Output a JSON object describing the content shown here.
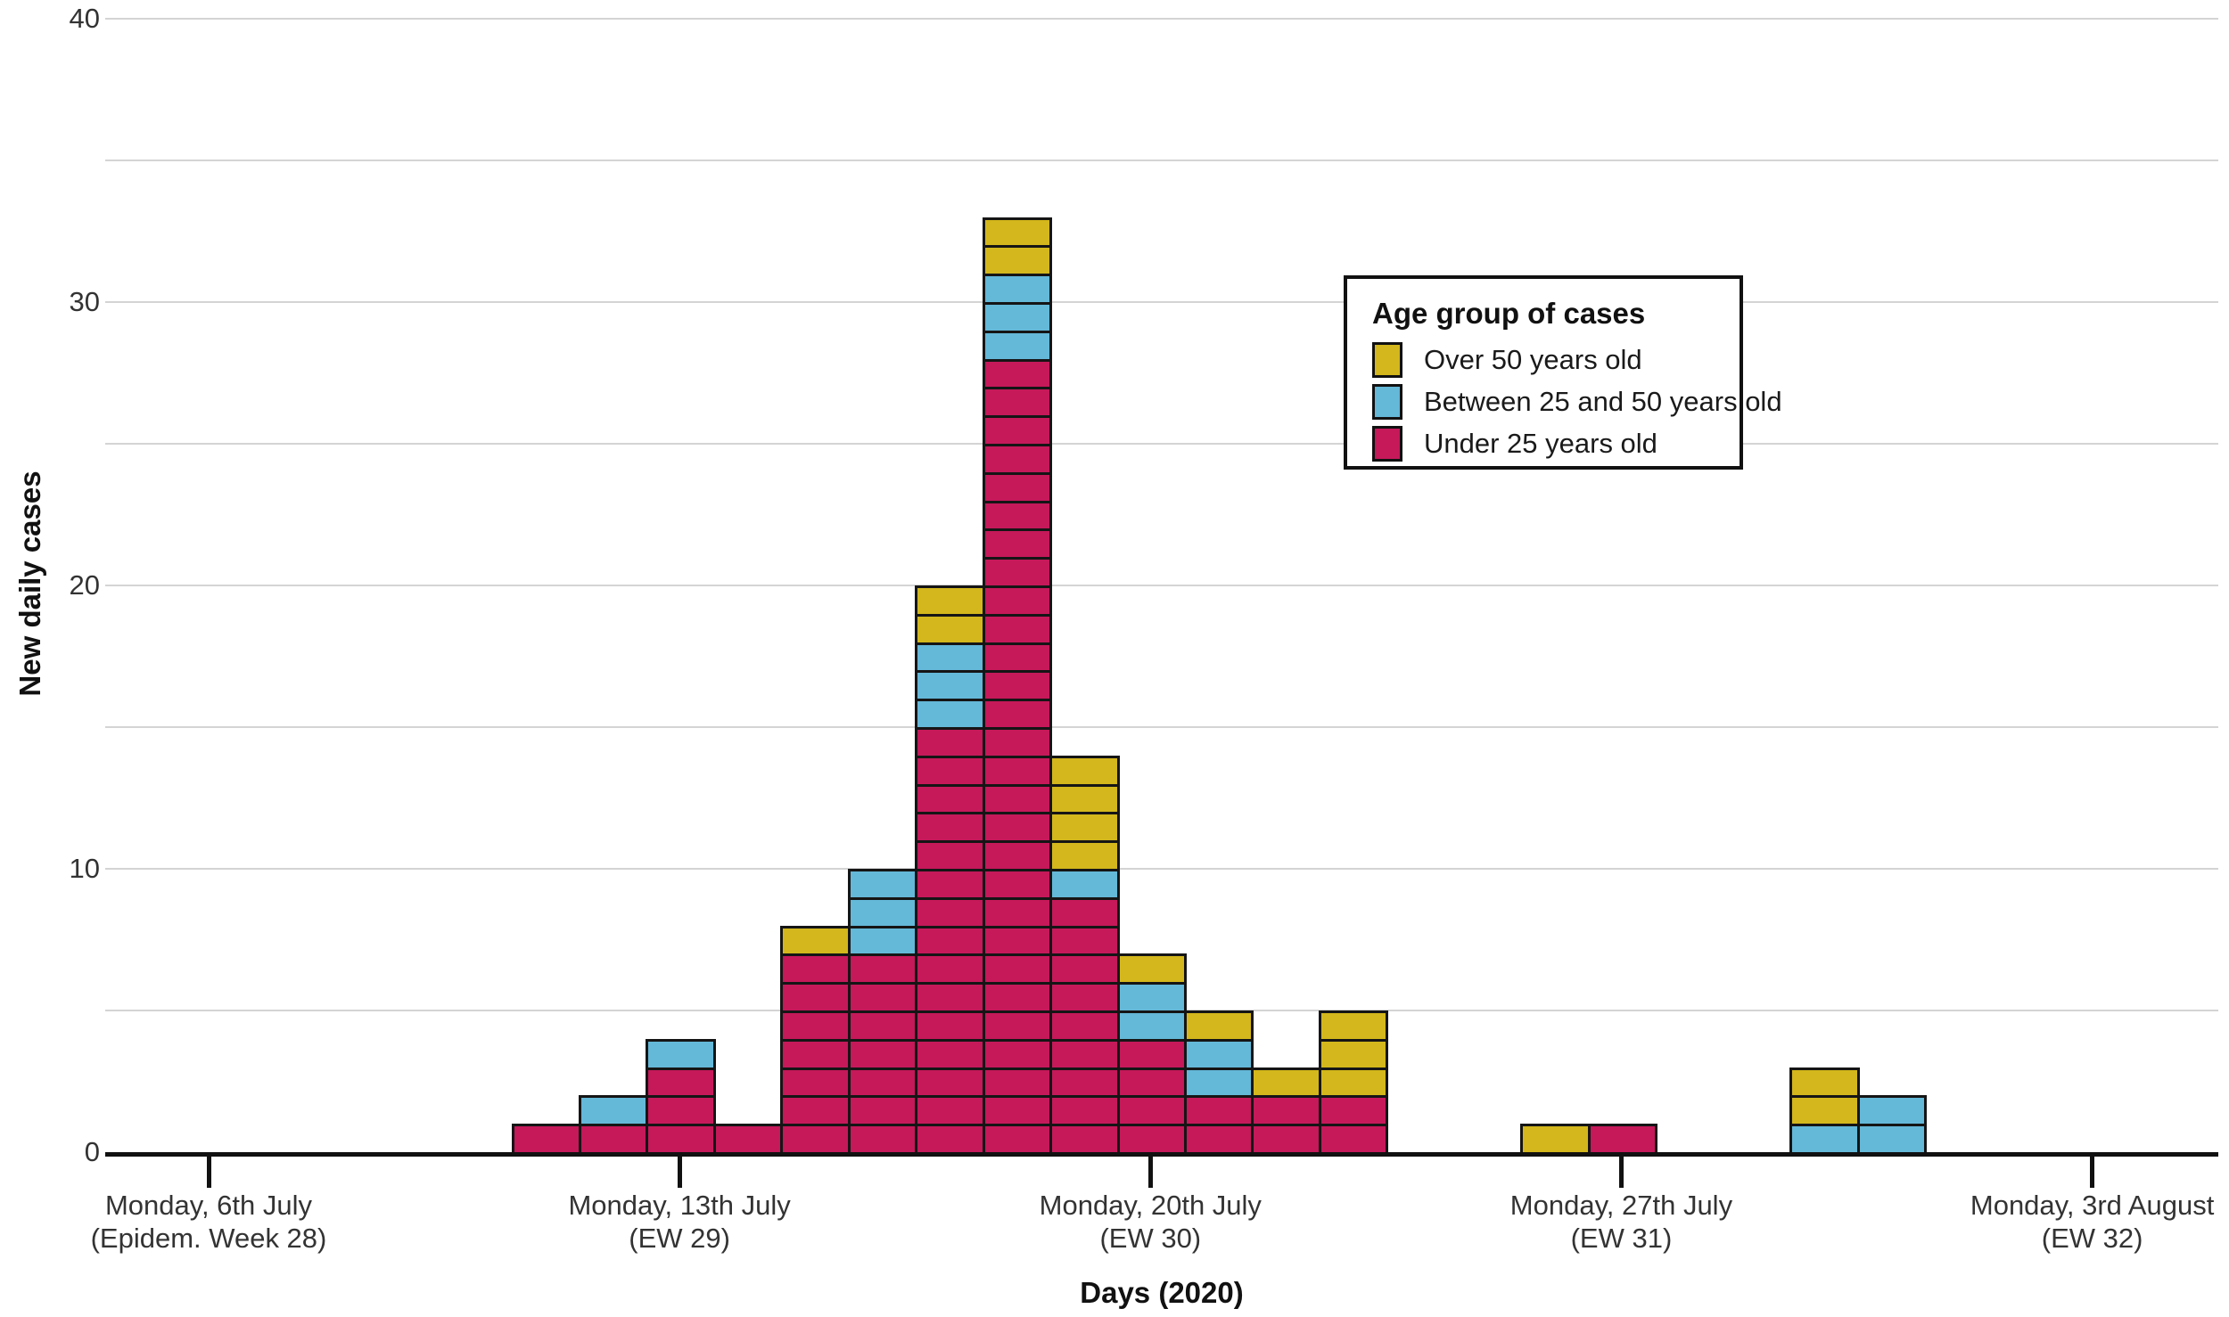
{
  "y_axis": {
    "title": "New daily cases",
    "ticks": [
      0,
      10,
      20,
      30,
      40
    ],
    "gridline_values": [
      5,
      10,
      15,
      20,
      25,
      30,
      35,
      40
    ],
    "max": 40
  },
  "x_axis": {
    "title": "Days (2020)",
    "ticks": [
      {
        "line1": "Monday, 6th July",
        "line2": "(Epidem. Week 28)",
        "day_offset": 0
      },
      {
        "line1": "Monday, 13th July",
        "line2": "(EW 29)",
        "day_offset": 7
      },
      {
        "line1": "Monday, 20th July",
        "line2": "(EW 30)",
        "day_offset": 14
      },
      {
        "line1": "Monday, 27th July",
        "line2": "(EW 31)",
        "day_offset": 21
      },
      {
        "line1": "Monday, 3rd August",
        "line2": "(EW 32)",
        "day_offset": 28
      }
    ]
  },
  "legend": {
    "title": "Age group of cases",
    "items": [
      {
        "key": "over_50",
        "label": "Over 50 years old",
        "color": "#d3b71c"
      },
      {
        "key": "between_25_50",
        "label": "Between 25 and 50 years old",
        "color": "#64b8d8"
      },
      {
        "key": "under_25",
        "label": "Under 25 years old",
        "color": "#c5195a"
      }
    ]
  },
  "chart_data": {
    "type": "bar",
    "subtype": "stacked-epicurve-one-box-per-case",
    "title": "",
    "xlabel": "Days (2020)",
    "ylabel": "New daily cases",
    "ylim": [
      0,
      40
    ],
    "grid": "horizontal, every 5 units",
    "legend_position": "upper right, framed box",
    "stack_order_bottom_to_top": [
      "under_25",
      "between_25_50",
      "over_50"
    ],
    "x_unit": "days, day_offset 0 = Monday 6th July 2020",
    "bars": [
      {
        "day_offset": 5,
        "date": "Sat 11 July",
        "under_25": 1,
        "between_25_50": 0,
        "over_50": 0,
        "total": 1
      },
      {
        "day_offset": 6,
        "date": "Sun 12 July",
        "under_25": 1,
        "between_25_50": 1,
        "over_50": 0,
        "total": 2
      },
      {
        "day_offset": 7,
        "date": "Mon 13 July",
        "under_25": 3,
        "between_25_50": 1,
        "over_50": 0,
        "total": 4
      },
      {
        "day_offset": 8,
        "date": "Tue 14 July",
        "under_25": 1,
        "between_25_50": 0,
        "over_50": 0,
        "total": 1
      },
      {
        "day_offset": 9,
        "date": "Wed 15 July",
        "under_25": 7,
        "between_25_50": 0,
        "over_50": 1,
        "total": 8
      },
      {
        "day_offset": 10,
        "date": "Thu 16 July",
        "under_25": 7,
        "between_25_50": 3,
        "over_50": 0,
        "total": 10
      },
      {
        "day_offset": 11,
        "date": "Fri 17 July",
        "under_25": 15,
        "between_25_50": 3,
        "over_50": 2,
        "total": 20
      },
      {
        "day_offset": 12,
        "date": "Sat 18 July",
        "under_25": 28,
        "between_25_50": 3,
        "over_50": 2,
        "total": 33
      },
      {
        "day_offset": 13,
        "date": "Sun 19 July",
        "under_25": 9,
        "between_25_50": 1,
        "over_50": 4,
        "total": 14
      },
      {
        "day_offset": 14,
        "date": "Mon 20 July",
        "under_25": 4,
        "between_25_50": 2,
        "over_50": 1,
        "total": 7
      },
      {
        "day_offset": 15,
        "date": "Tue 21 July",
        "under_25": 2,
        "between_25_50": 2,
        "over_50": 1,
        "total": 5
      },
      {
        "day_offset": 16,
        "date": "Wed 22 July",
        "under_25": 2,
        "between_25_50": 0,
        "over_50": 1,
        "total": 3
      },
      {
        "day_offset": 17,
        "date": "Thu 23 July",
        "under_25": 2,
        "between_25_50": 0,
        "over_50": 3,
        "total": 5
      },
      {
        "day_offset": 20,
        "date": "Sun 26 July",
        "under_25": 0,
        "between_25_50": 0,
        "over_50": 1,
        "total": 1
      },
      {
        "day_offset": 21,
        "date": "Mon 27 July",
        "under_25": 1,
        "between_25_50": 0,
        "over_50": 0,
        "total": 1
      },
      {
        "day_offset": 24,
        "date": "Thu 30 July",
        "under_25": 0,
        "between_25_50": 1,
        "over_50": 2,
        "total": 3
      },
      {
        "day_offset": 25,
        "date": "Fri 31 July",
        "under_25": 0,
        "between_25_50": 2,
        "over_50": 0,
        "total": 2
      }
    ],
    "colors": {
      "under_25": "#c5195a",
      "between_25_50": "#64b8d8",
      "over_50": "#d3b71c"
    },
    "cell_border_color": "#151515",
    "gridline_color": "#d4d4d4",
    "axis_color": "#111111"
  }
}
